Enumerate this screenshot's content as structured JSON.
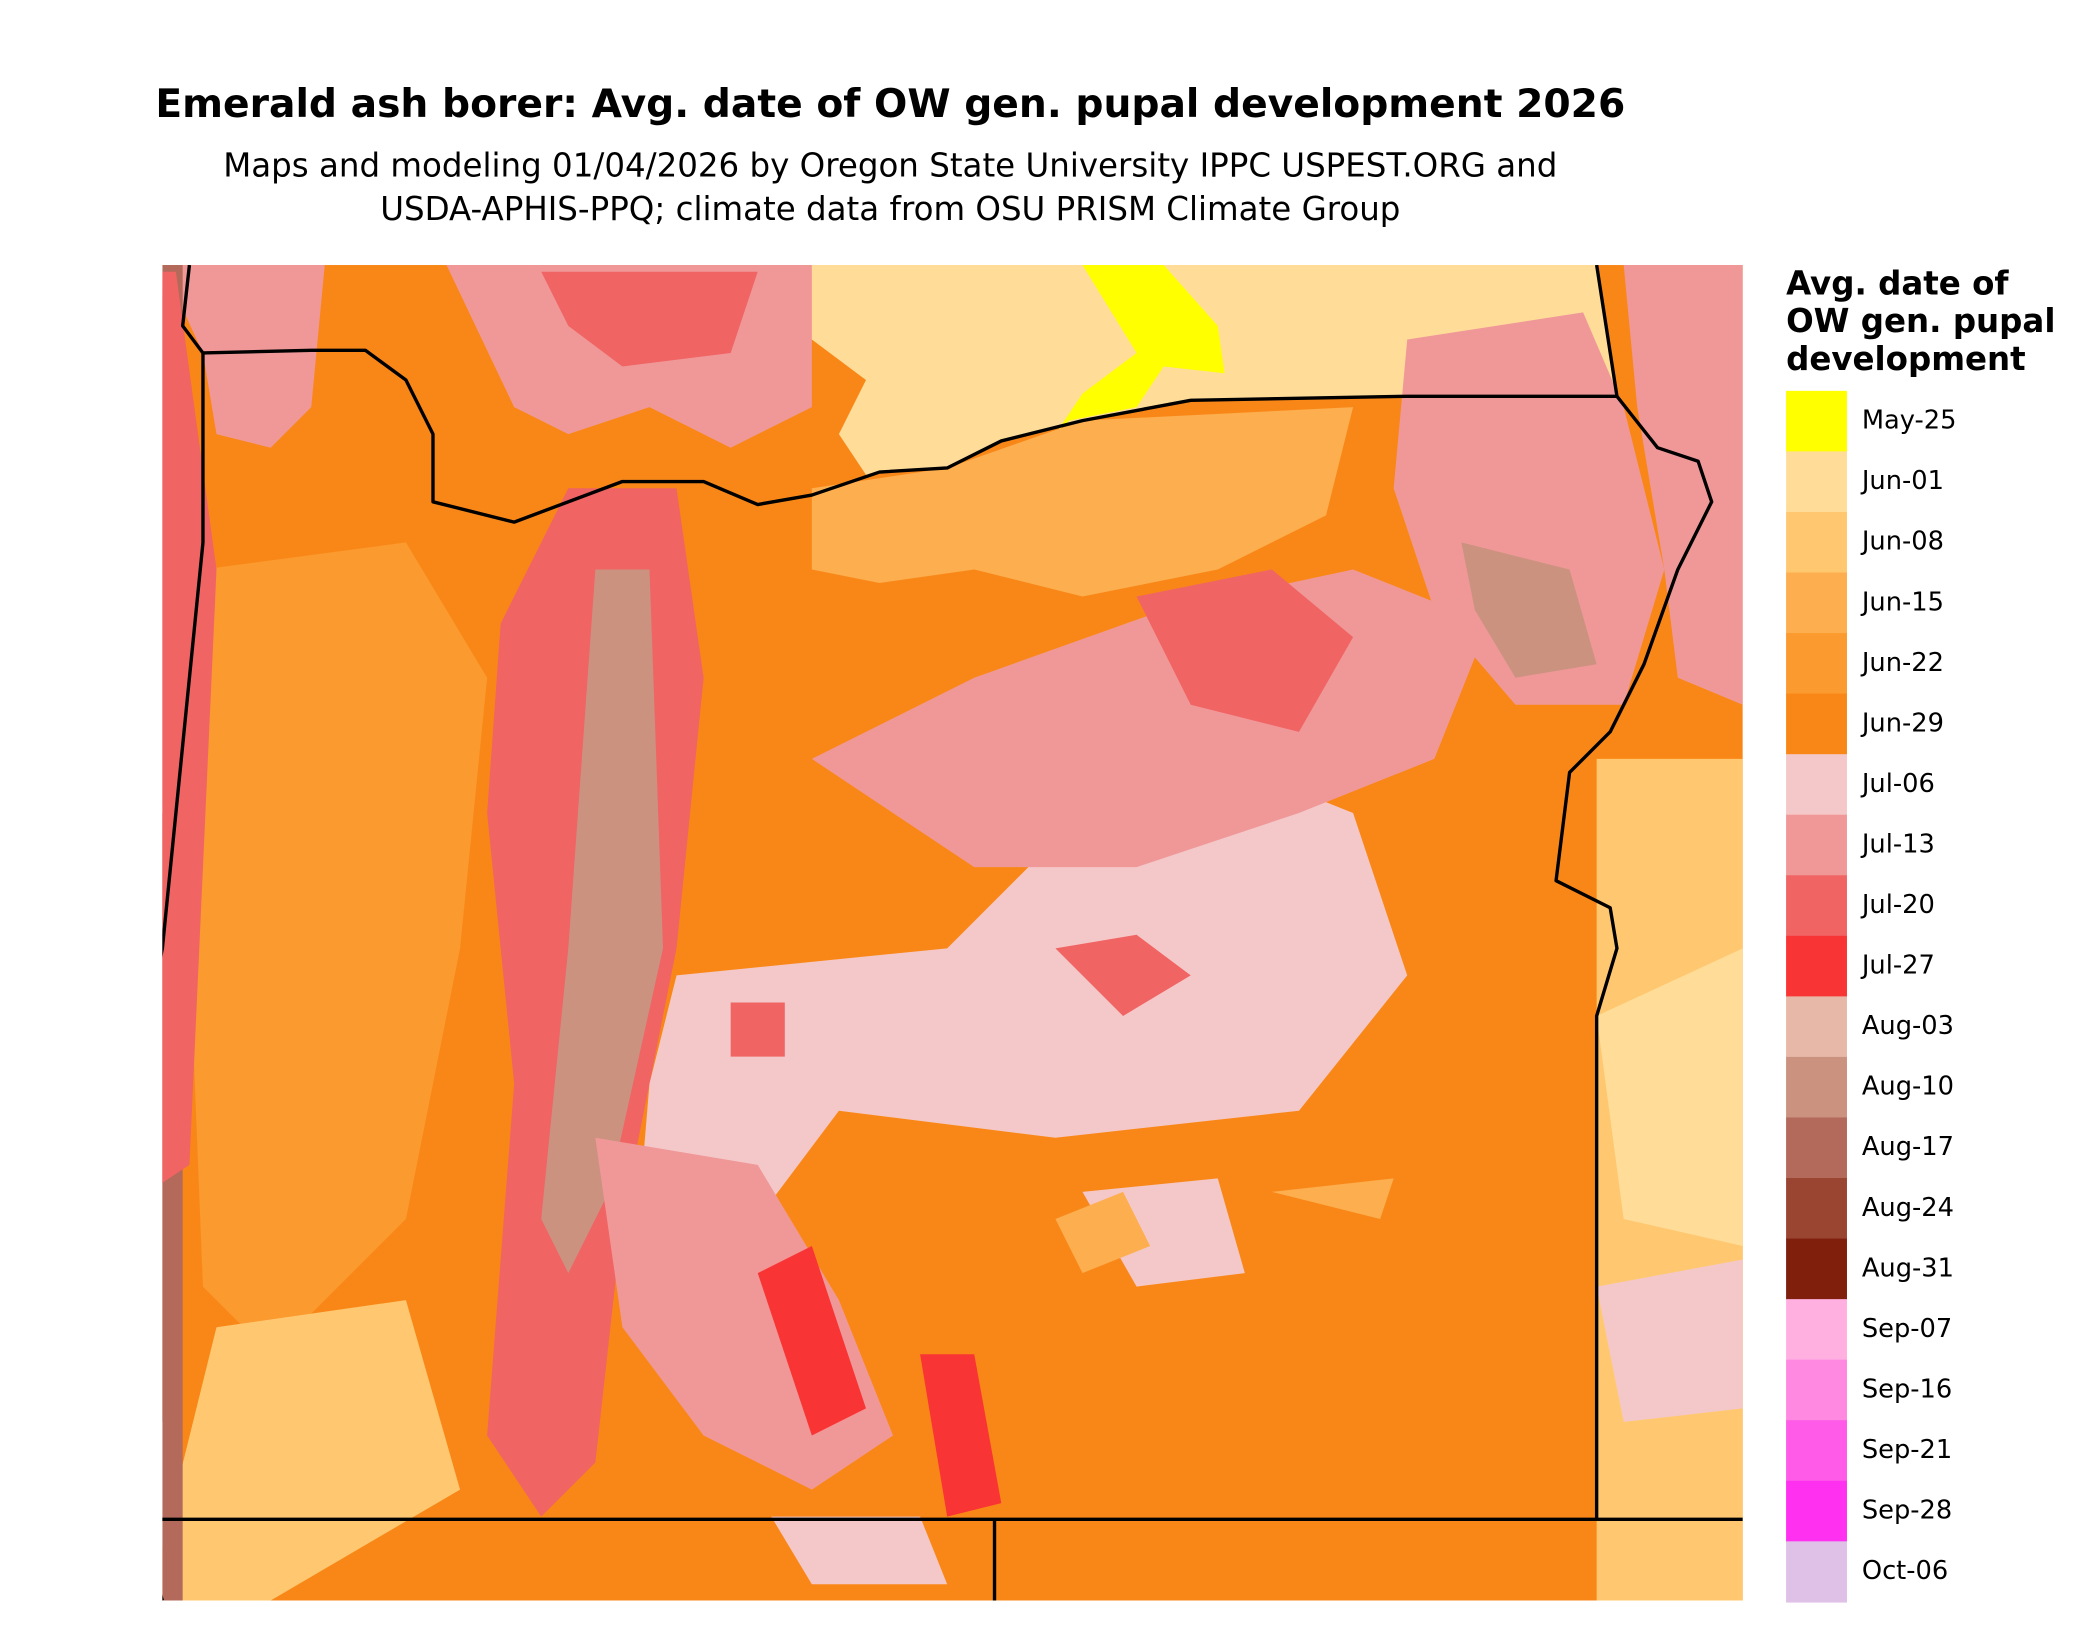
{
  "title": "Emerald ash borer: Avg. date of OW gen. pupal development 2026",
  "subtitle": [
    "Maps and modeling 01/04/2026 by Oregon State University IPPC USPEST.ORG and",
    "USDA-APHIS-PPQ; climate data from OSU PRISM Climate Group"
  ],
  "legend": {
    "title": [
      "Avg. date of",
      "OW gen. pupal",
      "development"
    ],
    "items": [
      {
        "label": "May-25",
        "color": "#FFFF00"
      },
      {
        "label": "Jun-01",
        "color": "#FFDD99"
      },
      {
        "label": "Jun-08",
        "color": "#FFC870"
      },
      {
        "label": "Jun-15",
        "color": "#FDAE4E"
      },
      {
        "label": "Jun-22",
        "color": "#FB9A2E"
      },
      {
        "label": "Jun-29",
        "color": "#F98718"
      },
      {
        "label": "Jul-06",
        "color": "#F4C8C8"
      },
      {
        "label": "Jul-13",
        "color": "#F09898"
      },
      {
        "label": "Jul-20",
        "color": "#F06464"
      },
      {
        "label": "Jul-27",
        "color": "#F93434"
      },
      {
        "label": "Aug-03",
        "color": "#E7B8A8"
      },
      {
        "label": "Aug-10",
        "color": "#CC9280"
      },
      {
        "label": "Aug-17",
        "color": "#B36A5A"
      },
      {
        "label": "Aug-24",
        "color": "#9A4432"
      },
      {
        "label": "Aug-31",
        "color": "#7F1F0C"
      },
      {
        "label": "Sep-07",
        "color": "#FFB0E0"
      },
      {
        "label": "Sep-16",
        "color": "#FF88E0"
      },
      {
        "label": "Sep-21",
        "color": "#FF5AE8"
      },
      {
        "label": "Sep-28",
        "color": "#FF30F0"
      },
      {
        "label": "Oct-06",
        "color": "#DFC0E6"
      }
    ]
  }
}
